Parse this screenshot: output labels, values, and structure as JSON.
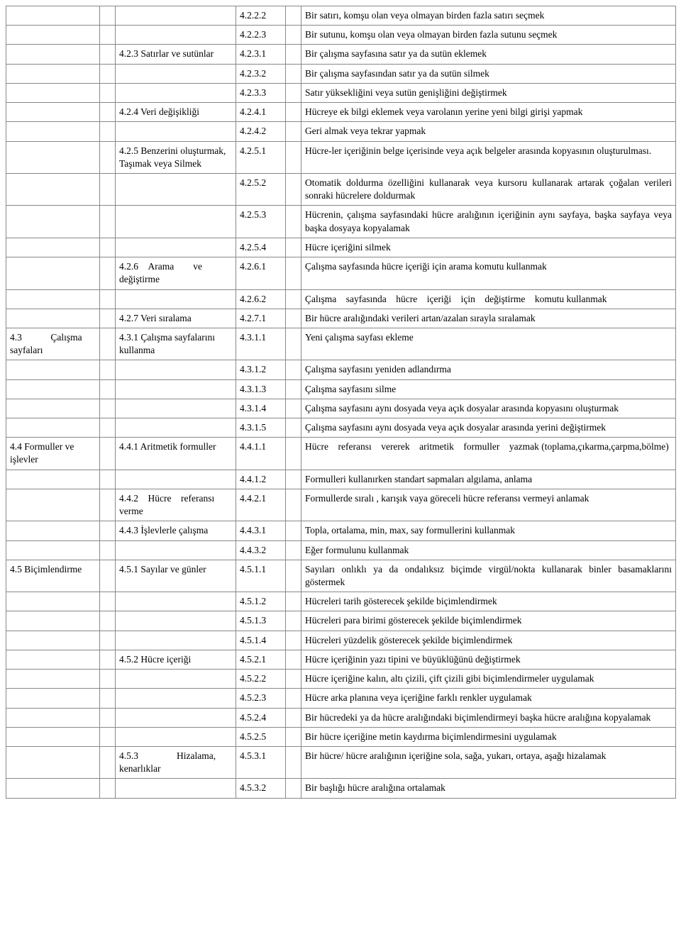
{
  "rows": [
    {
      "a": "",
      "b": "",
      "c": "",
      "d": "4.2.2.2",
      "e": "",
      "f": "Bir satırı, komşu olan veya olmayan birden fazla satırı seçmek"
    },
    {
      "a": "",
      "b": "",
      "c": "",
      "d": "4.2.2.3",
      "e": "",
      "f": "Bir sutunu, komşu olan veya olmayan birden fazla sutunu seçmek"
    },
    {
      "a": "",
      "b": "",
      "c": "4.2.3 Satırlar ve sutünlar",
      "d": "4.2.3.1",
      "e": "",
      "f": "Bir çalışma sayfasına satır ya da sutün eklemek"
    },
    {
      "a": "",
      "b": "",
      "c": "",
      "d": "4.2.3.2",
      "e": "",
      "f": "Bir çalışma sayfasından satır ya da sutün silmek"
    },
    {
      "a": "",
      "b": "",
      "c": "",
      "d": "4.2.3.3",
      "e": "",
      "f": "Satır yüksekliğini veya sutün genişliğini değiştirmek"
    },
    {
      "a": "",
      "b": "",
      "c": "4.2.4 Veri değişikliği",
      "d": "4.2.4.1",
      "e": "",
      "f": "Hücreye ek bilgi eklemek veya varolanın yerine yeni bilgi girişi yapmak"
    },
    {
      "a": "",
      "b": "",
      "c": "",
      "d": "4.2.4.2",
      "e": "",
      "f": "Geri almak veya tekrar yapmak"
    },
    {
      "a": "",
      "b": "",
      "c": "4.2.5 Benzerini oluşturmak, Taşımak veya Silmek",
      "d": "4.2.5.1",
      "e": "",
      "f": "Hücre-ler içeriğinin belge içerisinde veya açık belgeler arasında kopyasının oluşturulması.",
      "fj": true
    },
    {
      "a": "",
      "b": "",
      "c": "",
      "d": "4.2.5.2",
      "e": "",
      "f": "Otomatik doldurma özelliğini kullanarak veya kursoru kullanarak artarak çoğalan verileri sonraki hücrelere doldurmak",
      "fj": true
    },
    {
      "a": "",
      "b": "",
      "c": "",
      "d": "4.2.5.3",
      "e": "",
      "f": "Hücrenin, çalışma sayfasındaki hücre aralığının içeriğinin aynı sayfaya, başka sayfaya veya başka dosyaya kopyalamak",
      "fj": true
    },
    {
      "a": "",
      "b": "",
      "c": "",
      "d": "4.2.5.4",
      "e": "",
      "f": "Hücre içeriğini silmek"
    },
    {
      "a": "",
      "b": "",
      "c": "4.2.6 Arama  ve değiştirme",
      "d": "4.2.6.1",
      "e": "",
      "f": "Çalışma sayfasında hücre içeriği için arama komutu kullanmak"
    },
    {
      "a": "",
      "b": "",
      "c": "",
      "d": "4.2.6.2",
      "e": "",
      "f": "Çalışma sayfasında hücre içeriği için değiştirme komutu kullanmak"
    },
    {
      "a": "",
      "b": "",
      "c": "4.2.7 Veri sıralama",
      "d": "4.2.7.1",
      "e": "",
      "f": "Bir hücre aralığındaki verileri artan/azalan sırayla sıralamak"
    },
    {
      "a": "4.3   Çalışma sayfaları",
      "b": "",
      "c": "4.3.1 Çalışma sayfalarını kullanma",
      "d": "4.3.1.1",
      "e": "",
      "f": "Yeni çalışma sayfası ekleme"
    },
    {
      "a": "",
      "b": "",
      "c": "",
      "d": "4.3.1.2",
      "e": "",
      "f": "Çalışma sayfasını yeniden adlandırma"
    },
    {
      "a": "",
      "b": "",
      "c": "",
      "d": "4.3.1.3",
      "e": "",
      "f": "Çalışma sayfasını silme"
    },
    {
      "a": "",
      "b": "",
      "c": "",
      "d": "4.3.1.4",
      "e": "",
      "f": "Çalışma sayfasını aynı   dosyada veya açık dosyalar arasında kopyasını oluşturmak",
      "fj": true
    },
    {
      "a": "",
      "b": "",
      "c": "",
      "d": "4.3.1.5",
      "e": "",
      "f": "Çalışma sayfasını aynı  dosyada veya açık dosyalar arasında yerini değiştirmek",
      "fj": true
    },
    {
      "a": "4.4 Formuller ve işlevler",
      "b": "",
      "c": "4.4.1 Aritmetik formuller",
      "d": "4.4.1.1",
      "e": "",
      "f": "Hücre referansı vererek aritmetik formuller yazmak (toplama,çıkarma,çarpma,bölme)"
    },
    {
      "a": "",
      "b": "",
      "c": "",
      "d": "4.4.1.2",
      "e": "",
      "f": "Formulleri kullanırken standart sapmaları algılama,  anlama"
    },
    {
      "a": "",
      "b": "",
      "c": "4.4.2 Hücre referansı verme",
      "d": "4.4.2.1",
      "e": "",
      "f": "Formullerde sıralı , karışık vaya göreceli hücre referansı vermeyi anlamak"
    },
    {
      "a": "",
      "b": "",
      "c": "4.4.3 İşlevlerle çalışma",
      "d": "4.4.3.1",
      "e": "",
      "f": "Topla, ortalama, min, max, say formullerini kullanmak"
    },
    {
      "a": "",
      "b": "",
      "c": "",
      "d": "4.4.3.2",
      "e": "",
      "f": "Eğer formulunu kullanmak"
    },
    {
      "a": "4.5 Biçimlendirme",
      "b": "",
      "c": "4.5.1 Sayılar ve günler",
      "d": "4.5.1.1",
      "e": "",
      "f": "Sayıları onlıklı ya da ondalıksız biçimde virgül/nokta kullanarak binler basamaklarını göstermek",
      "fj": true
    },
    {
      "a": "",
      "b": "",
      "c": "",
      "d": "4.5.1.2",
      "e": "",
      "f": "Hücreleri tarih gösterecek şekilde biçimlendirmek"
    },
    {
      "a": "",
      "b": "",
      "c": "",
      "d": "4.5.1.3",
      "e": "",
      "f": "Hücreleri para birimi gösterecek şekilde biçimlendirmek"
    },
    {
      "a": "",
      "b": "",
      "c": "",
      "d": "4.5.1.4",
      "e": "",
      "f": "Hücreleri yüzdelik gösterecek şekilde biçimlendirmek"
    },
    {
      "a": "",
      "b": "",
      "c": "4.5.2 Hücre içeriği",
      "d": "4.5.2.1",
      "e": "",
      "f": "Hücre içeriğinin yazı tipini ve büyüklüğünü değiştirmek"
    },
    {
      "a": "",
      "b": "",
      "c": "",
      "d": "4.5.2.2",
      "e": "",
      "f": "Hücre içeriğine kalın, altı çizili, çift çizili gibi biçimlendirmeler uygulamak",
      "fj": true
    },
    {
      "a": "",
      "b": "",
      "c": "",
      "d": "4.5.2.3",
      "e": "",
      "f": "Hücre arka planına veya içeriğine farklı renkler uygulamak"
    },
    {
      "a": "",
      "b": "",
      "c": "",
      "d": "4.5.2.4",
      "e": "",
      "f": "Bir hücredeki ya da hücre aralığındaki biçimlendirmeyi başka hücre aralığına kopyalamak",
      "fj": true
    },
    {
      "a": "",
      "b": "",
      "c": "",
      "d": "4.5.2.5",
      "e": "",
      "f": "Bir hücre içeriğine metin kaydırma biçimlendirmesini uygulamak"
    },
    {
      "a": "",
      "b": "",
      "c": "4.5.3    Hizalama, kenarlıklar",
      "d": "4.5.3.1",
      "e": "",
      "f": "Bir hücre/ hücre aralığının içeriğine sola, sağa, yukarı, ortaya, aşağı hizalamak",
      "fj": true
    },
    {
      "a": "",
      "b": "",
      "c": "",
      "d": "4.5.3.2",
      "e": "",
      "f": "Bir başlığı hücre aralığına ortalamak"
    }
  ]
}
